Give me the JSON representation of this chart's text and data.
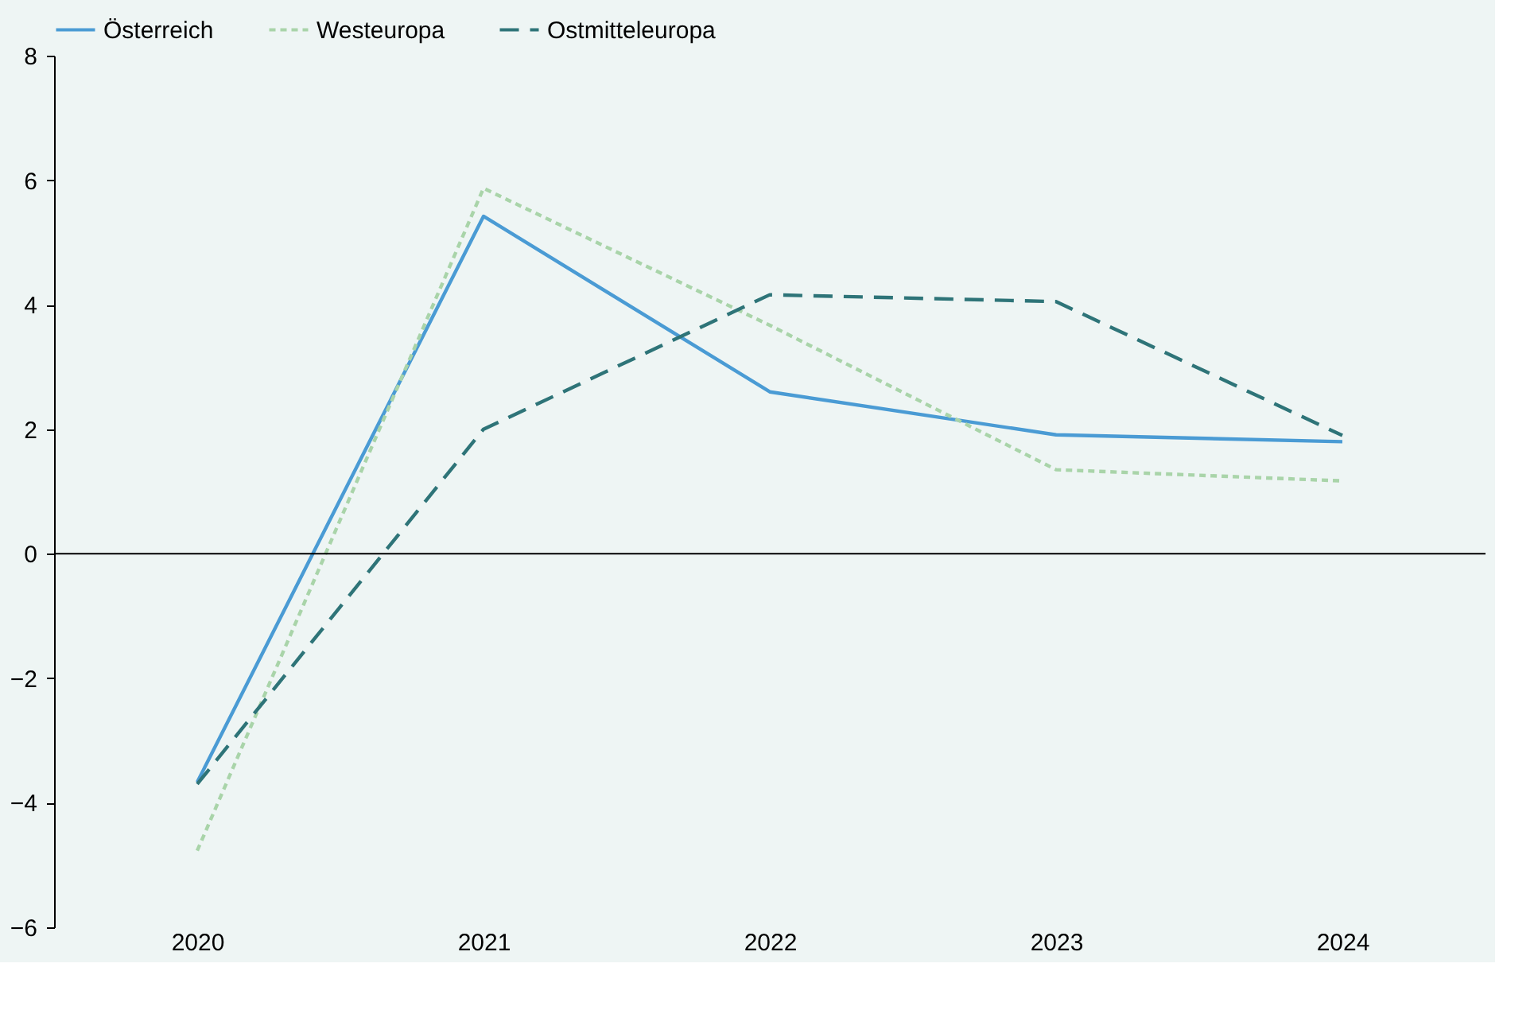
{
  "chart_data": {
    "type": "line",
    "categories": [
      "2020",
      "2021",
      "2022",
      "2023",
      "2024"
    ],
    "series": [
      {
        "name": "Österreich",
        "color": "#4a9bd4",
        "line_style": "solid",
        "values": [
          -3.67,
          5.42,
          2.6,
          1.91,
          1.8
        ]
      },
      {
        "name": "Westeuropa",
        "color": "#a9d4a9",
        "line_style": "dotted",
        "values": [
          -4.77,
          5.87,
          3.67,
          1.35,
          1.17
        ]
      },
      {
        "name": "Ostmitteleuropa",
        "color": "#2e7478",
        "line_style": "dashed",
        "values": [
          -3.7,
          2.0,
          4.16,
          4.05,
          1.9
        ]
      }
    ],
    "ylim": [
      -6,
      8
    ],
    "yticks": [
      -6,
      -4,
      -2,
      0,
      2,
      4,
      6,
      8
    ],
    "ref_lines": [
      {
        "axis": "y",
        "value": 0,
        "color": "#000000"
      }
    ],
    "grid": false,
    "legend": "top",
    "marker": "none"
  }
}
